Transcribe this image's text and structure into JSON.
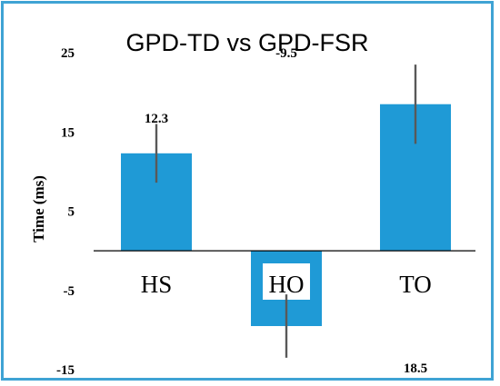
{
  "chart_data": {
    "type": "bar",
    "title": "GPD-TD vs GPD-FSR",
    "ylabel": "Time (ms)",
    "xlabel": "",
    "categories": [
      "HS",
      "HO",
      "TO"
    ],
    "values": [
      12.3,
      -9.5,
      18.5
    ],
    "error": [
      3.7,
      4.0,
      5.0
    ],
    "data_labels": [
      "12.3",
      "-9.5",
      "18.5"
    ],
    "yticks": [
      25,
      15,
      5,
      -5,
      -15
    ],
    "ytick_labels": [
      "25",
      "15",
      "5",
      "-5",
      "-15"
    ],
    "ylim": [
      -15,
      25
    ],
    "grid": false,
    "legend": "none",
    "colors": {
      "bar": "#1f9ad6",
      "error_bar": "#595959",
      "frame": "#3fa3d4",
      "axis": "#000000"
    }
  }
}
